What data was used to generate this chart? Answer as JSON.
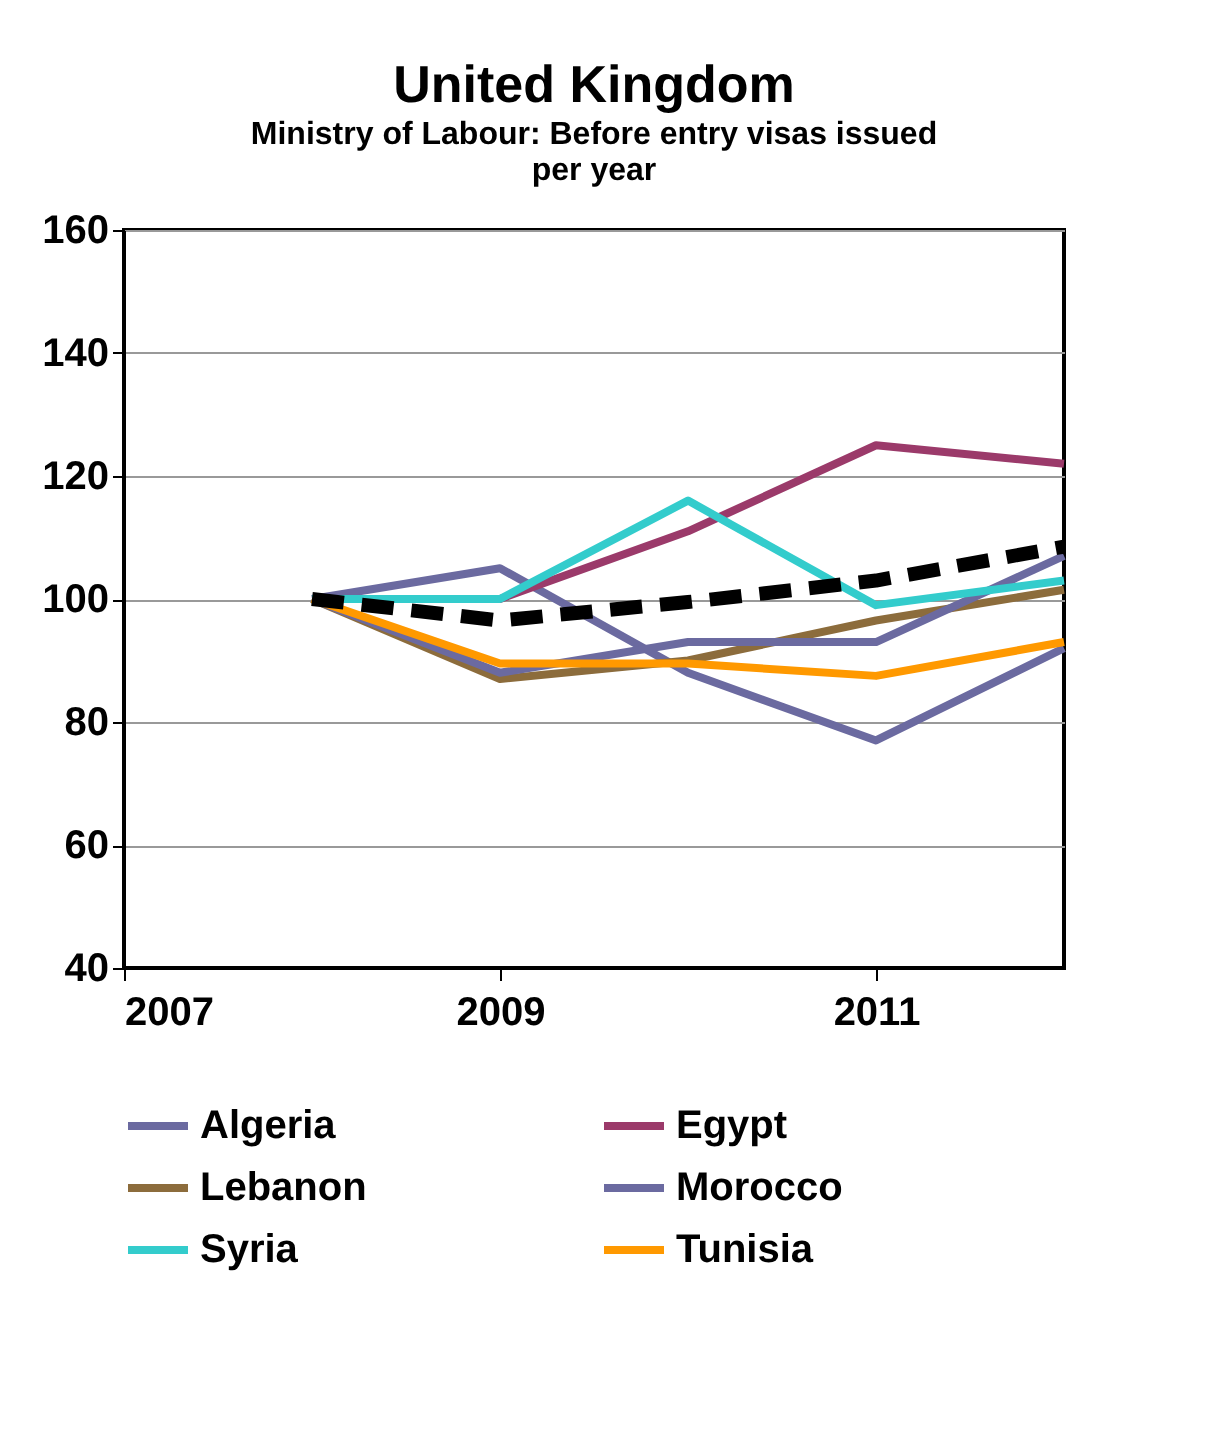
{
  "chart_data": {
    "type": "line",
    "title": "United Kingdom",
    "subtitle": "Ministry of Labour:  Before entry visas issued per year",
    "x": [
      2008,
      2009,
      2010,
      2011,
      2012
    ],
    "series": [
      {
        "name": "Algeria",
        "color": "#6b6aa0",
        "values": [
          100,
          105,
          88,
          77,
          92
        ]
      },
      {
        "name": "Egypt",
        "color": "#9b3a6a",
        "values": [
          100,
          100,
          111,
          125,
          122
        ]
      },
      {
        "name": "Lebanon",
        "color": "#8c6c3c",
        "values": [
          100,
          87,
          90,
          96.5,
          101.5
        ]
      },
      {
        "name": "Morocco",
        "color": "#6b6aa0",
        "values": [
          100,
          88,
          93,
          93,
          107
        ]
      },
      {
        "name": "Syria",
        "color": "#33cccc",
        "values": [
          100,
          100,
          116,
          99,
          103
        ]
      },
      {
        "name": "Tunisia",
        "color": "#ff9900",
        "values": [
          100,
          89.5,
          89.5,
          87.5,
          93
        ]
      },
      {
        "color": "#000000",
        "line_style": "dashed",
        "values": [
          100,
          96.5,
          99.5,
          103,
          108.5
        ]
      }
    ],
    "xlim": [
      2007,
      2012
    ],
    "xticks": [
      2007,
      2009,
      2011
    ],
    "ylim": [
      40,
      160
    ],
    "yticks": [
      40,
      60,
      80,
      100,
      120,
      140,
      160
    ],
    "grid": "y",
    "legend": "bottom",
    "marker": "none"
  }
}
